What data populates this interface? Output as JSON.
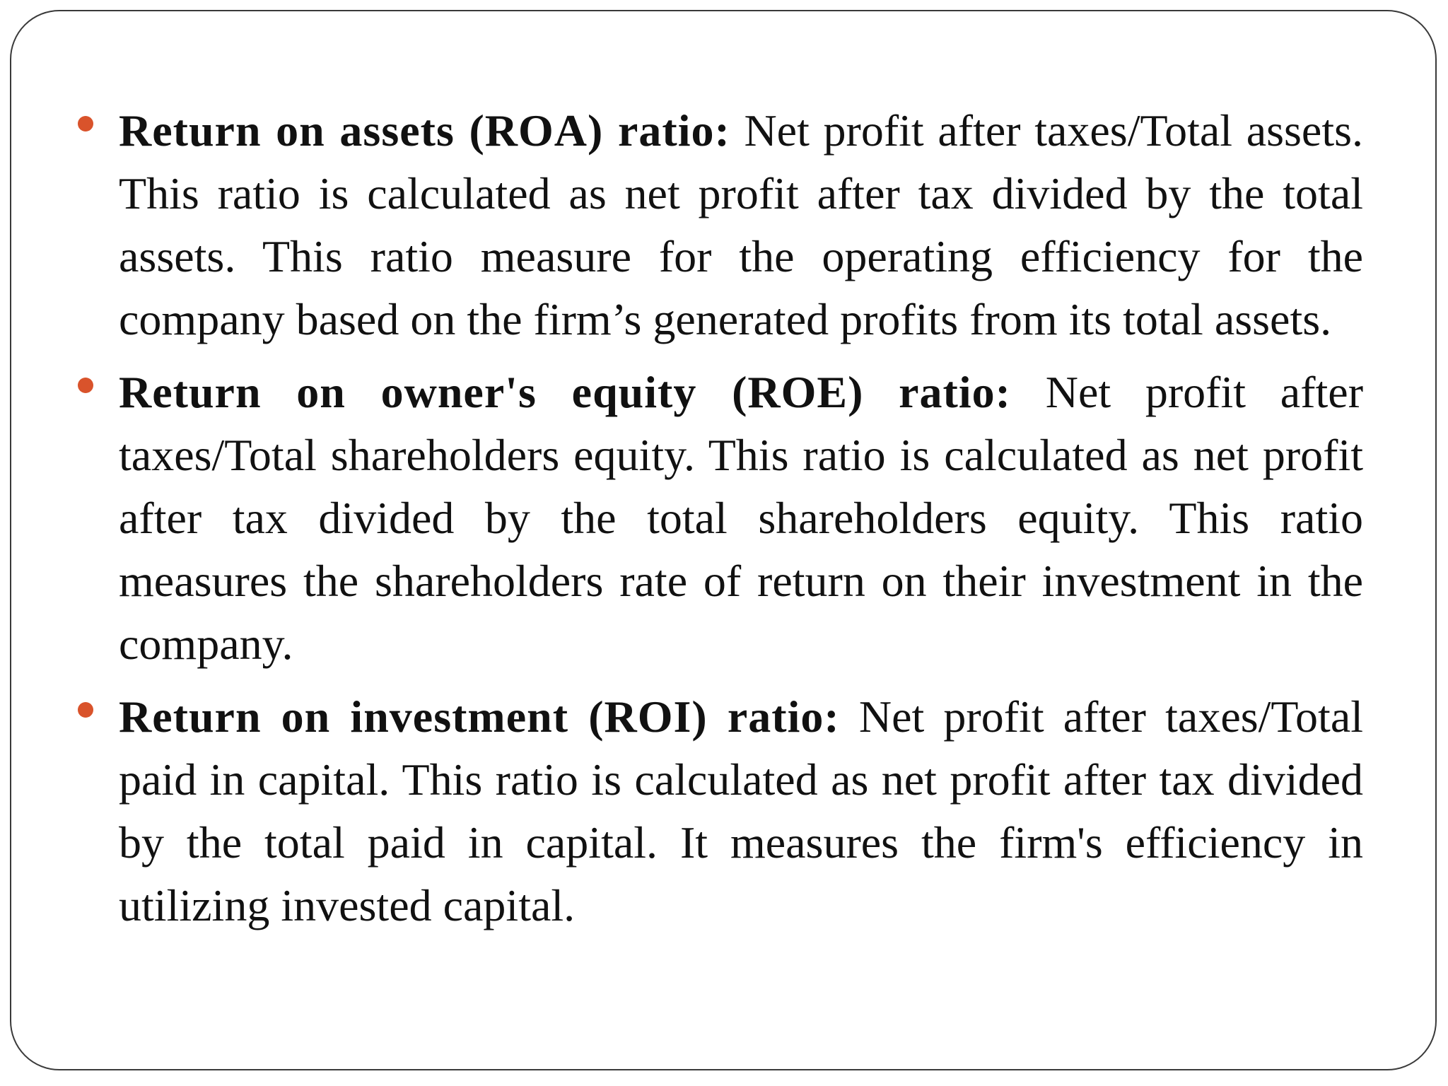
{
  "colors": {
    "bullet": "#d9532b",
    "text": "#111111",
    "frame": "#3a3a3a"
  },
  "bullets": [
    {
      "term": "Return on assets (ROA) ratio:",
      "text": "Net profit after taxes/Total assets. This ratio is calculated as net profit after tax divided by the total assets. This ratio measure for the operating efficiency for the company based on the firm’s generated profits from its total assets."
    },
    {
      "term": "Return on owner's equity (ROE) ratio:",
      "text": "Net profit after taxes/Total shareholders equity. This ratio is calculated as net profit after tax divided by the total shareholders equity. This ratio measures the shareholders rate of return on their investment in the company."
    },
    {
      "term": "Return on investment (ROI) ratio:",
      "text": "Net profit after taxes/Total paid in capital. This ratio is calculated as net profit after tax divided by the total paid in capital. It measures the firm's efficiency in utilizing invested capital."
    }
  ]
}
